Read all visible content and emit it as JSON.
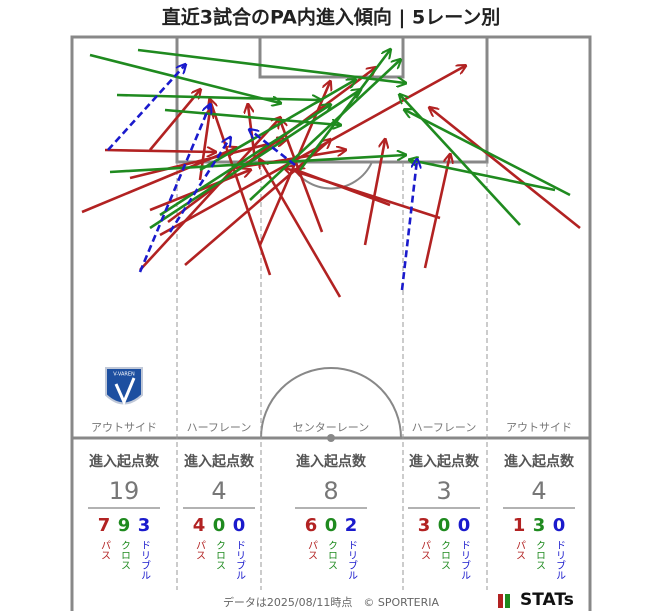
{
  "title": "直近3試合のPA内進入傾向 | 5レーン別",
  "badge": "V-VAREN",
  "lanes": [
    {
      "label": "アウトサイド",
      "header": "進入起点数",
      "total": 19,
      "pass": 7,
      "cross": 9,
      "dribble": 3
    },
    {
      "label": "ハーフレーン",
      "header": "進入起点数",
      "total": 4,
      "pass": 4,
      "cross": 0,
      "dribble": 0
    },
    {
      "label": "センターレーン",
      "header": "進入起点数",
      "total": 8,
      "pass": 6,
      "cross": 0,
      "dribble": 2
    },
    {
      "label": "ハーフレーン",
      "header": "進入起点数",
      "total": 3,
      "pass": 3,
      "cross": 0,
      "dribble": 0
    },
    {
      "label": "アウトサイド",
      "header": "進入起点数",
      "total": 4,
      "pass": 1,
      "cross": 3,
      "dribble": 0
    }
  ],
  "kind_labels": {
    "pass": "パス",
    "cross": "クロス",
    "dribble": "ドリブル"
  },
  "footer": "データは2025/08/11時点　© SPORTERIA",
  "logo": "STATs"
}
